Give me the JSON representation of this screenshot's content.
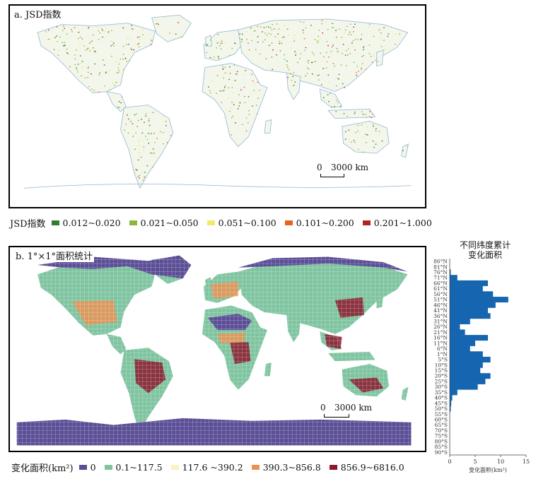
{
  "panel_a": {
    "title": "a. JSD指数",
    "scalebar": {
      "zero": "0",
      "distance": "3000 km"
    },
    "legend": {
      "title": "JSD指数",
      "items": [
        {
          "label": "0.012~0.020",
          "color": "#2e7d32"
        },
        {
          "label": "0.021~0.050",
          "color": "#8bb83a"
        },
        {
          "label": "0.051~0.100",
          "color": "#f2e86a"
        },
        {
          "label": "0.101~0.200",
          "color": "#e8631f"
        },
        {
          "label": "0.201~1.000",
          "color": "#b22222"
        }
      ]
    }
  },
  "panel_b": {
    "title": "b. 1°×1°面积统计",
    "scalebar": {
      "zero": "0",
      "distance": "3000 km"
    },
    "legend": {
      "title": "变化面积(km²)",
      "items": [
        {
          "label": "0",
          "color": "#5b4e96"
        },
        {
          "label": "0.1~117.5",
          "color": "#7fc4a0"
        },
        {
          "label": "117.6 ~390.2",
          "color": "#fbf3c0"
        },
        {
          "label": "390.3~856.8",
          "color": "#f09050"
        },
        {
          "label": "856.9~6816.0",
          "color": "#8b1a2e"
        }
      ]
    }
  },
  "side_chart": {
    "title_line1": "不同纬度累计",
    "title_line2": "变化面积",
    "xlabel": "变化面积(km²)",
    "color": "#1565b0"
  },
  "chart_data": {
    "type": "bar",
    "orientation": "horizontal",
    "title": "不同纬度累计变化面积",
    "xlabel": "变化面积(km²)",
    "xlim": [
      0,
      15
    ],
    "xticks": [
      0,
      5,
      10,
      15
    ],
    "categories": [
      "86°N",
      "81°N",
      "76°N",
      "71°N",
      "66°N",
      "61°N",
      "56°N",
      "51°N",
      "46°N",
      "41°N",
      "36°N",
      "31°N",
      "26°N",
      "21°N",
      "16°N",
      "11°N",
      "6°N",
      "1°N",
      "5°S",
      "10°S",
      "15°S",
      "20°S",
      "25°S",
      "30°S",
      "35°S",
      "40°S",
      "45°S",
      "50°S",
      "55°S",
      "60°S",
      "65°S",
      "70°S",
      "75°S",
      "80°S",
      "85°S",
      "90°S"
    ],
    "values": [
      0,
      0,
      0.2,
      1.5,
      7.5,
      6.5,
      8.5,
      11.5,
      9.0,
      7.5,
      8.0,
      4.0,
      2.0,
      3.0,
      7.5,
      5.0,
      4.0,
      6.5,
      8.0,
      6.5,
      6.0,
      8.0,
      7.0,
      5.5,
      1.5,
      0.5,
      0.3,
      0.2,
      0,
      0,
      0,
      0,
      0,
      0,
      0,
      0
    ]
  }
}
